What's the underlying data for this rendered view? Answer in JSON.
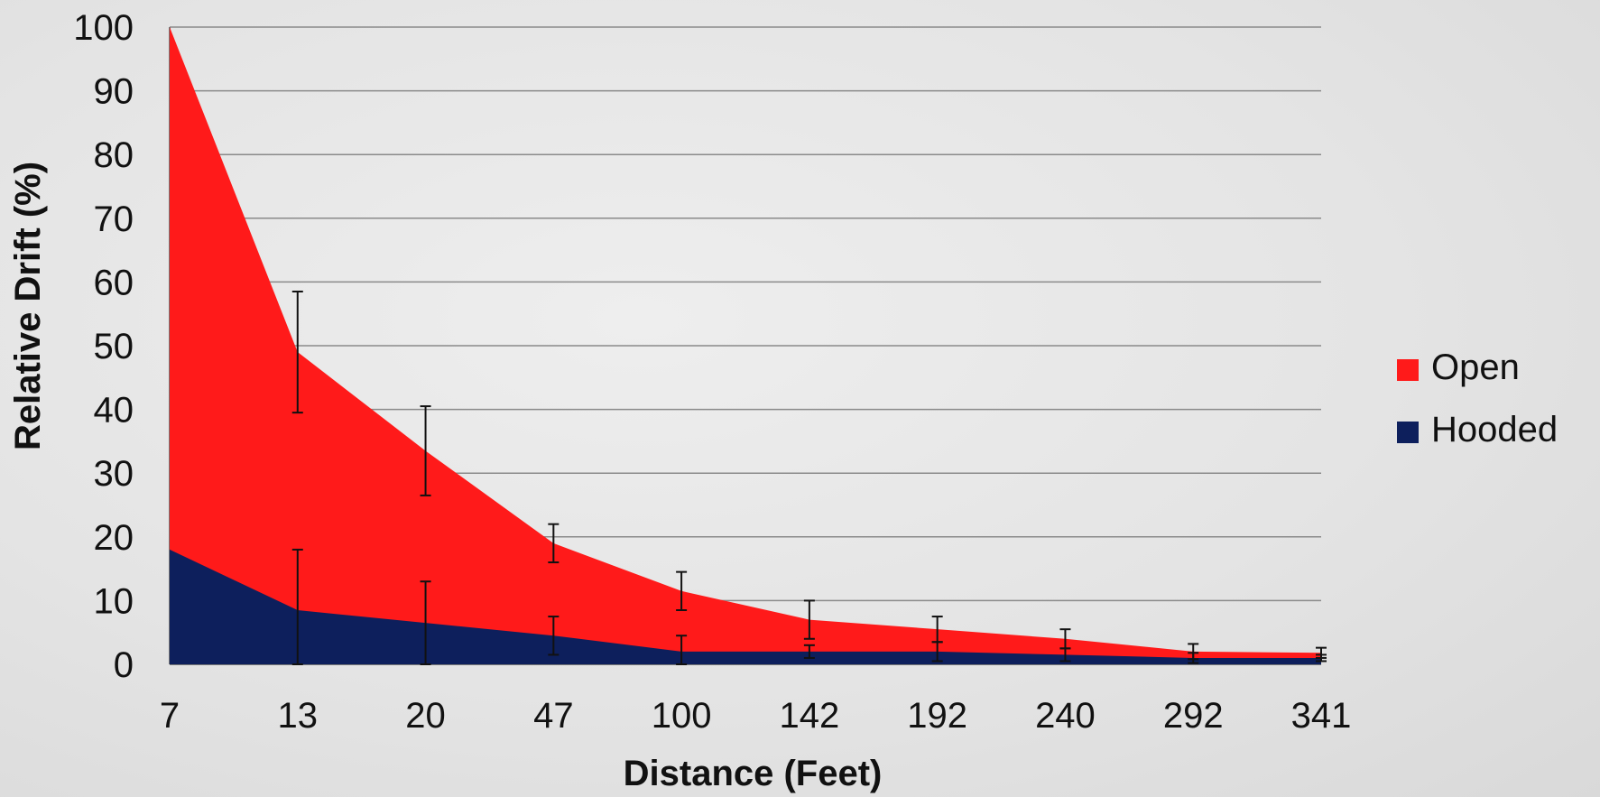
{
  "chart_data": {
    "type": "area",
    "xlabel": "Distance (Feet)",
    "ylabel": "Relative Drift (%)",
    "categories": [
      "7",
      "13",
      "20",
      "47",
      "100",
      "142",
      "192",
      "240",
      "292",
      "341"
    ],
    "ylim": [
      0,
      100
    ],
    "yticks": [
      0,
      10,
      20,
      30,
      40,
      50,
      60,
      70,
      80,
      90,
      100
    ],
    "grid": true,
    "stacking": "overlay",
    "legend_position": "right",
    "series": [
      {
        "name": "Open",
        "color": "#ff1a1a",
        "values": [
          100,
          49,
          33.5,
          19,
          11.5,
          7,
          5.5,
          4,
          2,
          1.8
        ],
        "error": [
          0,
          9.5,
          7,
          3,
          3,
          3,
          2,
          1.5,
          1.2,
          0.8
        ]
      },
      {
        "name": "Hooded",
        "color": "#0d1f5c",
        "values": [
          18,
          8.5,
          6.5,
          4.5,
          2,
          2,
          2,
          1.5,
          1,
          1
        ],
        "error": [
          0,
          9.5,
          6.5,
          3,
          2.5,
          1,
          1.5,
          1,
          0.8,
          0.5
        ]
      }
    ]
  }
}
